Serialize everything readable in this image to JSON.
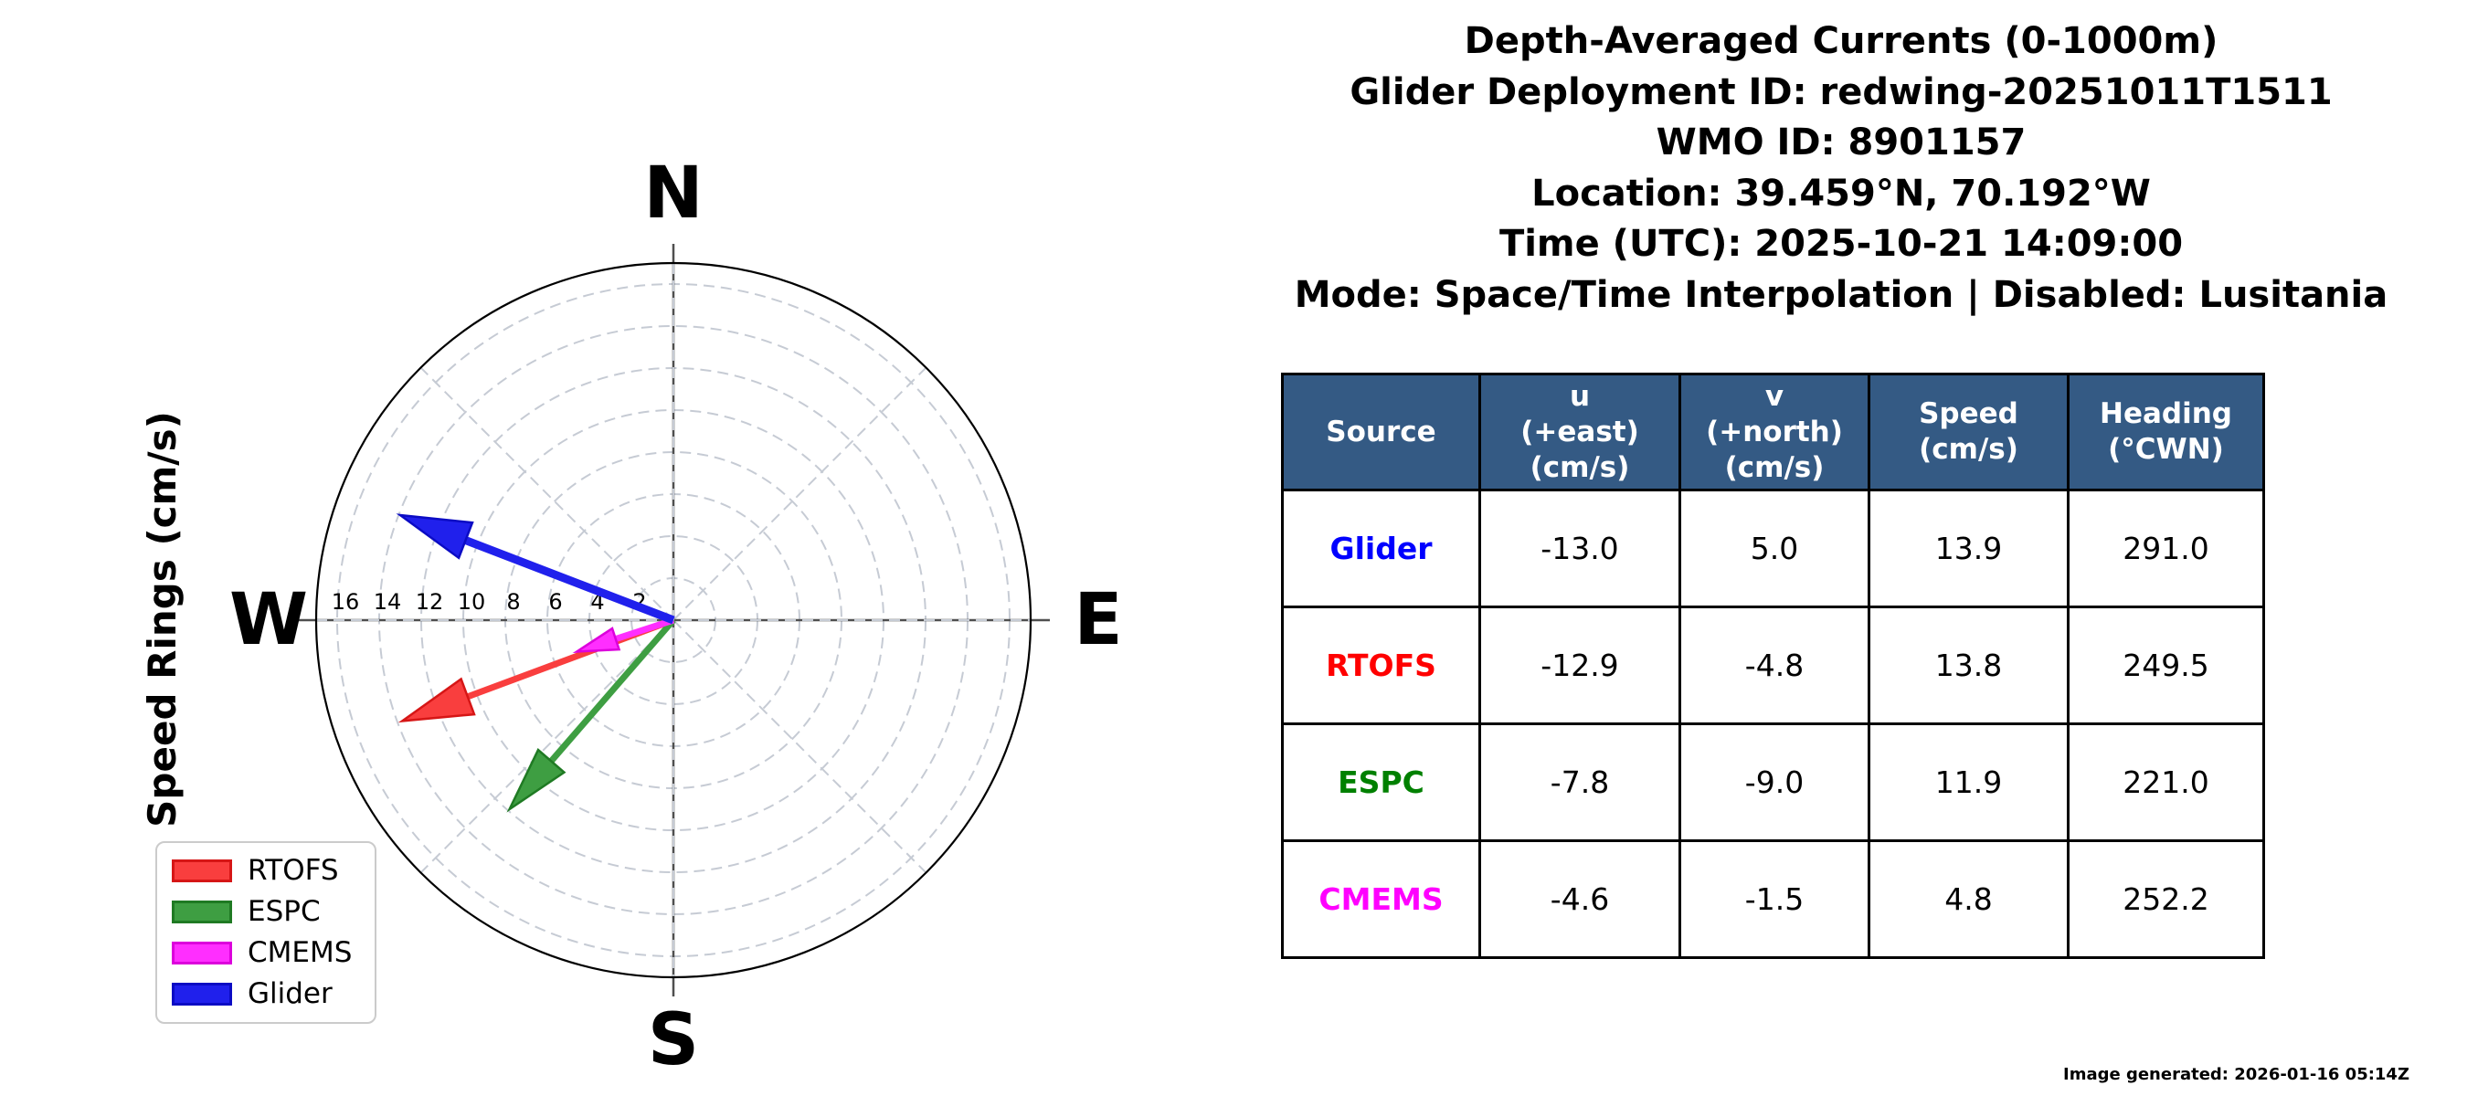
{
  "header": {
    "lines": [
      "Depth-Averaged Currents (0-1000m)",
      "Glider Deployment ID: redwing-20251011T1511",
      "WMO ID: 8901157",
      "Location: 39.459°N, 70.192°W",
      "Time (UTC): 2025-10-21 14:09:00",
      "Mode: Space/Time Interpolation | Disabled: Lusitania"
    ]
  },
  "chart_data": {
    "type": "quiver-compass",
    "axis_label": "Speed Rings (cm/s)",
    "compass": {
      "north": "N",
      "east": "E",
      "south": "S",
      "west": "W"
    },
    "ring_values": [
      2,
      4,
      6,
      8,
      10,
      12,
      14,
      16
    ],
    "ring_unit": "cm/s",
    "rmax": 17,
    "grid": "dashed rings every 2 cm/s with 45-degree spokes",
    "legend_position": "lower left",
    "series": [
      {
        "name": "RTOFS",
        "u": -12.9,
        "v": -4.8,
        "speed": 13.8,
        "heading": 249.5,
        "color": "#F93E3E",
        "edge": "#D61616"
      },
      {
        "name": "ESPC",
        "u": -7.8,
        "v": -9.0,
        "speed": 11.9,
        "heading": 221.0,
        "color": "#3E9E42",
        "edge": "#1F7A23"
      },
      {
        "name": "CMEMS",
        "u": -4.6,
        "v": -1.5,
        "speed": 4.8,
        "heading": 252.2,
        "color": "#FF2EFF",
        "edge": "#DC00DC"
      },
      {
        "name": "Glider",
        "u": -13.0,
        "v": 5.0,
        "speed": 13.9,
        "heading": 291.0,
        "color": "#2020EC",
        "edge": "#0B0BC4"
      }
    ]
  },
  "table": {
    "header_bg": "#345A84",
    "columns": [
      {
        "lines": [
          "Source"
        ]
      },
      {
        "lines": [
          "u",
          "(+east)",
          "(cm/s)"
        ]
      },
      {
        "lines": [
          "v",
          "(+north)",
          "(cm/s)"
        ]
      },
      {
        "lines": [
          "Speed",
          "(cm/s)"
        ]
      },
      {
        "lines": [
          "Heading",
          "(°CWN)"
        ]
      }
    ],
    "rows": [
      {
        "source": "Glider",
        "color": "#0000FF",
        "u": "-13.0",
        "v": "5.0",
        "speed": "13.9",
        "heading": "291.0"
      },
      {
        "source": "RTOFS",
        "color": "#FF0000",
        "u": "-12.9",
        "v": "-4.8",
        "speed": "13.8",
        "heading": "249.5"
      },
      {
        "source": "ESPC",
        "color": "#008000",
        "u": "-7.8",
        "v": "-9.0",
        "speed": "11.9",
        "heading": "221.0"
      },
      {
        "source": "CMEMS",
        "color": "#FF00FF",
        "u": "-4.6",
        "v": "-1.5",
        "speed": "4.8",
        "heading": "252.2"
      }
    ]
  },
  "footer": {
    "generated": "Image generated: 2026-01-16 05:14Z"
  }
}
